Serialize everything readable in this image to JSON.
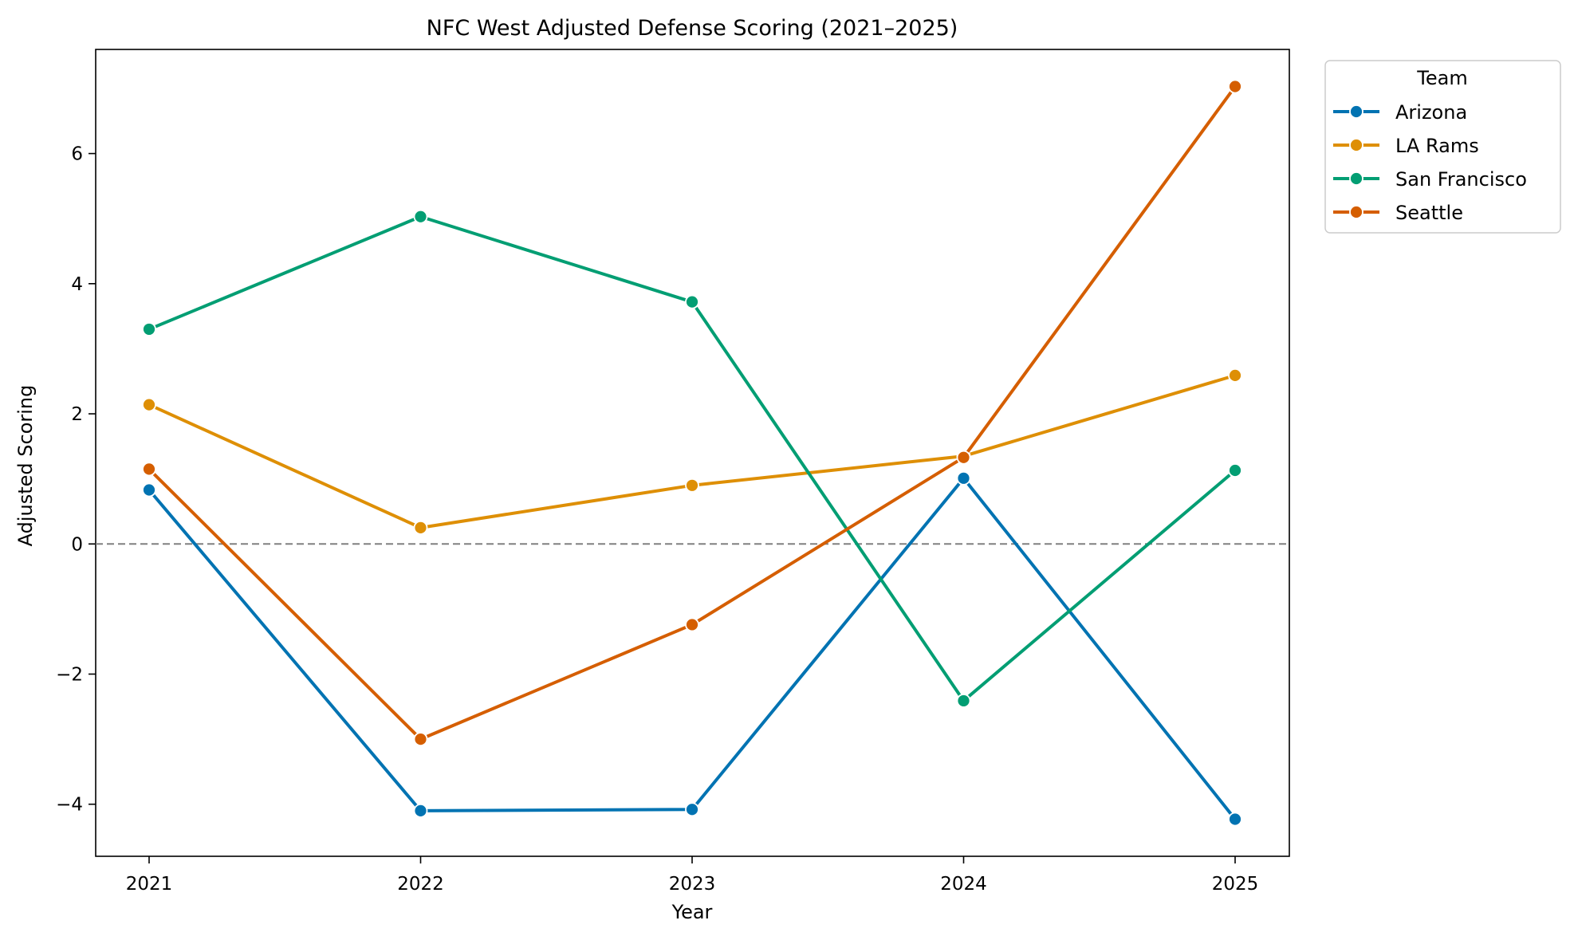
{
  "chart_data": {
    "type": "line",
    "title": "NFC West Adjusted Defense Scoring (2021–2025)",
    "xlabel": "Year",
    "ylabel": "Adjusted Scoring",
    "categories": [
      "2021",
      "2022",
      "2023",
      "2024",
      "2025"
    ],
    "ylim": [
      -4.8,
      7.6
    ],
    "yticks": [
      -4,
      -2,
      0,
      2,
      4,
      6
    ],
    "ytick_labels": [
      "−4",
      "−2",
      "0",
      "2",
      "4",
      "6"
    ],
    "reference_line": {
      "y": 0,
      "style": "dashed",
      "color": "#808080"
    },
    "grid": false,
    "legend": {
      "title": "Team",
      "placement": "outside-top-right"
    },
    "series": [
      {
        "name": "Arizona",
        "color": "#0173b2",
        "values": [
          0.83,
          -4.1,
          -4.08,
          1.01,
          -4.23
        ]
      },
      {
        "name": "LA Rams",
        "color": "#de8f05",
        "values": [
          2.14,
          0.25,
          0.9,
          1.35,
          2.59
        ]
      },
      {
        "name": "San Francisco",
        "color": "#029e73",
        "values": [
          3.3,
          5.03,
          3.72,
          -2.41,
          1.13
        ]
      },
      {
        "name": "Seattle",
        "color": "#d55e00",
        "values": [
          1.15,
          -3.0,
          -1.24,
          1.33,
          7.03
        ]
      }
    ]
  }
}
